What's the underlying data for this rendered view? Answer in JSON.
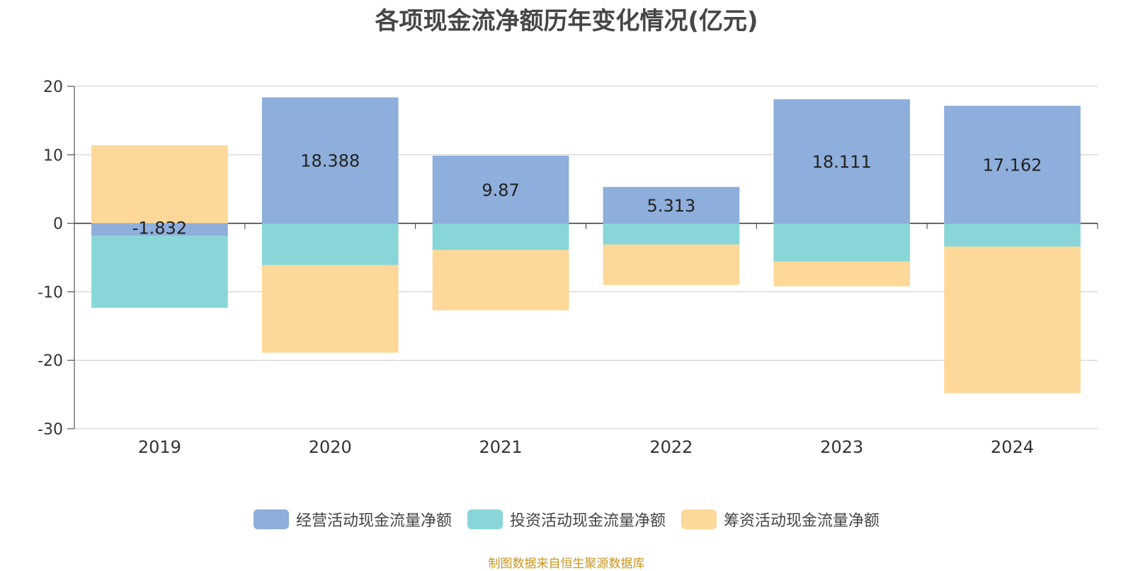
{
  "chart_data": {
    "type": "bar",
    "stacked": true,
    "title": "各项现金流净额历年变化情况(亿元)",
    "categories": [
      "2019",
      "2020",
      "2021",
      "2022",
      "2023",
      "2024"
    ],
    "series": [
      {
        "name": "经营活动现金流量净额",
        "color": "#8eaedb",
        "values": [
          -1.832,
          18.388,
          9.87,
          5.313,
          18.111,
          17.162
        ],
        "labels_shown": true
      },
      {
        "name": "投资活动现金流量净额",
        "color": "#88d6d8",
        "values": [
          -10.5,
          -6.1,
          -3.9,
          -3.1,
          -5.6,
          -3.4
        ],
        "labels_shown": false
      },
      {
        "name": "筹资活动现金流量净额",
        "color": "#fed898",
        "values": [
          11.4,
          -12.8,
          -8.8,
          -5.9,
          -3.6,
          -21.4
        ],
        "labels_shown": false
      }
    ],
    "y_ticks": [
      "20",
      "10",
      "0",
      "-10",
      "-20",
      "-30"
    ],
    "ylim": [
      -30,
      20
    ],
    "grid": true,
    "legend_position": "bottom"
  },
  "footer": {
    "source": "制图数据来自恒生聚源数据库"
  }
}
